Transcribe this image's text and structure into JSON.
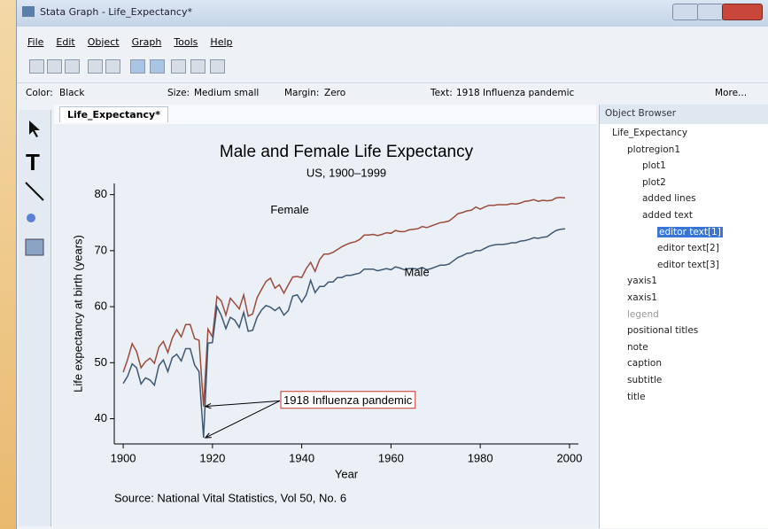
{
  "window": {
    "title": "Stata Graph - Life_Expectancy*"
  },
  "menu": [
    "File",
    "Edit",
    "Object",
    "Graph",
    "Tools",
    "Help"
  ],
  "properties": {
    "color_label": "Color:",
    "color": "Black",
    "size_label": "Size:",
    "size": "Medium small",
    "margin_label": "Margin:",
    "margin": "Zero",
    "text_label": "Text:",
    "text": "1918 Influenza pandemic",
    "more": "More..."
  },
  "tab": "Life_Expectancy*",
  "object_browser": {
    "title": "Object Browser",
    "nodes": [
      "Life_Expectancy",
      "plotregion1",
      "plot1",
      "plot2",
      "added lines",
      "added text",
      "editor text[1]",
      "editor text[2]",
      "editor text[3]",
      "yaxis1",
      "xaxis1",
      "legend",
      "positional titles",
      "note",
      "caption",
      "subtitle",
      "title"
    ]
  },
  "chart_data": {
    "type": "line",
    "title": "Male and Female Life Expectancy",
    "subtitle": "US, 1900–1999",
    "xlabel": "Year",
    "ylabel": "Life expectancy at birth (years)",
    "note": "Source:  National Vital Statistics, Vol 50, No. 6",
    "annotation": "1918 Influenza pandemic",
    "x": [
      1900,
      1901,
      1902,
      1903,
      1904,
      1905,
      1906,
      1907,
      1908,
      1909,
      1910,
      1911,
      1912,
      1913,
      1914,
      1915,
      1916,
      1917,
      1918,
      1919,
      1920,
      1921,
      1922,
      1923,
      1924,
      1925,
      1926,
      1927,
      1928,
      1929,
      1930,
      1931,
      1932,
      1933,
      1934,
      1935,
      1936,
      1937,
      1938,
      1939,
      1940,
      1941,
      1942,
      1943,
      1944,
      1945,
      1946,
      1947,
      1948,
      1949,
      1950,
      1951,
      1952,
      1953,
      1954,
      1955,
      1956,
      1957,
      1958,
      1959,
      1960,
      1961,
      1962,
      1963,
      1964,
      1965,
      1966,
      1967,
      1968,
      1969,
      1970,
      1971,
      1972,
      1973,
      1974,
      1975,
      1976,
      1977,
      1978,
      1979,
      1980,
      1981,
      1982,
      1983,
      1984,
      1985,
      1986,
      1987,
      1988,
      1989,
      1990,
      1991,
      1992,
      1993,
      1994,
      1995,
      1996,
      1997,
      1998,
      1999
    ],
    "series": [
      {
        "name": "Female",
        "color": "#9c4b3d",
        "values": [
          48.3,
          50.6,
          53.4,
          52.0,
          49.1,
          50.2,
          50.8,
          49.9,
          52.8,
          53.8,
          51.8,
          54.4,
          55.9,
          54.6,
          56.8,
          56.8,
          54.3,
          54.0,
          42.2,
          56.0,
          54.6,
          61.8,
          61.0,
          58.5,
          61.5,
          60.6,
          59.6,
          62.1,
          58.3,
          58.7,
          61.6,
          63.1,
          64.5,
          65.1,
          63.3,
          63.9,
          62.4,
          63.9,
          65.3,
          65.4,
          65.2,
          66.8,
          67.9,
          66.3,
          68.4,
          69.4,
          69.4,
          69.7,
          70.2,
          70.7,
          71.1,
          71.4,
          71.6,
          72.0,
          72.8,
          72.8,
          72.9,
          72.7,
          72.9,
          73.2,
          73.1,
          73.6,
          73.4,
          73.4,
          73.7,
          73.8,
          73.9,
          74.3,
          74.1,
          74.4,
          74.7,
          75.0,
          75.1,
          75.3,
          75.9,
          76.6,
          76.8,
          77.1,
          77.2,
          77.8,
          77.4,
          77.8,
          78.1,
          78.1,
          78.2,
          78.2,
          78.2,
          78.4,
          78.3,
          78.5,
          78.8,
          78.9,
          79.1,
          78.8,
          79.0,
          78.9,
          79.0,
          79.4,
          79.5,
          79.4
        ]
      },
      {
        "name": "Male",
        "color": "#3e5874",
        "values": [
          46.3,
          47.6,
          49.8,
          49.1,
          46.2,
          47.3,
          46.9,
          46.0,
          49.5,
          50.5,
          48.4,
          50.9,
          51.5,
          50.3,
          52.5,
          52.5,
          49.6,
          48.4,
          36.6,
          53.5,
          53.6,
          60.0,
          58.4,
          56.1,
          58.1,
          57.6,
          56.3,
          59.0,
          55.6,
          55.8,
          58.1,
          59.4,
          60.2,
          59.9,
          59.3,
          59.9,
          58.5,
          59.3,
          61.9,
          62.1,
          60.8,
          62.1,
          64.7,
          62.5,
          63.6,
          63.6,
          64.4,
          64.4,
          65.2,
          65.2,
          65.6,
          65.6,
          65.8,
          66.0,
          66.7,
          66.7,
          66.7,
          66.4,
          66.6,
          66.8,
          66.6,
          67.1,
          66.9,
          66.6,
          66.8,
          66.8,
          66.7,
          67.0,
          66.6,
          66.8,
          67.1,
          67.4,
          67.4,
          67.6,
          68.2,
          68.8,
          69.1,
          69.5,
          69.6,
          70.0,
          70.0,
          70.4,
          70.8,
          71.0,
          71.1,
          71.1,
          71.2,
          71.4,
          71.4,
          71.7,
          71.8,
          72.0,
          72.3,
          72.2,
          72.4,
          72.5,
          73.1,
          73.6,
          73.8,
          73.9
        ]
      }
    ],
    "xlim": [
      1898,
      2002
    ],
    "ylim": [
      35.5,
      82
    ],
    "xticks": [
      1900,
      1920,
      1940,
      1960,
      1980,
      2000
    ],
    "yticks": [
      40,
      50,
      60,
      70,
      80
    ]
  }
}
